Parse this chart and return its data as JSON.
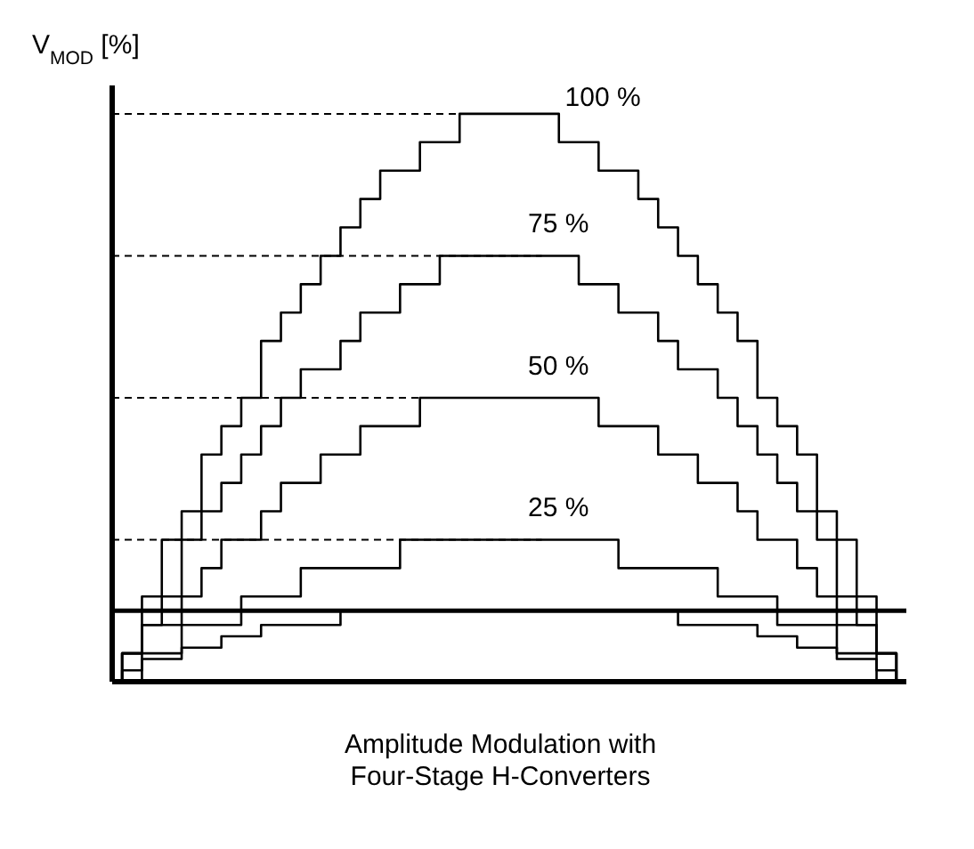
{
  "chart_data": {
    "type": "step",
    "ylabel": "V$_{MOD}$ [%]",
    "xlabel": "Amplitude Modulation with\nFour-Stage H-Converters",
    "categories": [
      null,
      null,
      null,
      null,
      null,
      null,
      null,
      null,
      null,
      null,
      null,
      null,
      null,
      null,
      null,
      null,
      null,
      null,
      null,
      null,
      null,
      null,
      null,
      null,
      null,
      null,
      null,
      null,
      null,
      null,
      null,
      null,
      null,
      null,
      null,
      null,
      null,
      null,
      null,
      null,
      null
    ],
    "ylim": [
      0,
      105
    ],
    "tick_labels": false,
    "marker": "none",
    "line_style": "solid",
    "series": [
      {
        "color": "#000000",
        "values": [
          0,
          5,
          15,
          25,
          30,
          40,
          45,
          50,
          60,
          65,
          70,
          75,
          80,
          85,
          90,
          90,
          95,
          95,
          100,
          100,
          100,
          100,
          100,
          95,
          95,
          90,
          90,
          85,
          80,
          75,
          70,
          65,
          60,
          50,
          45,
          40,
          30,
          25,
          15,
          5,
          0
        ]
      },
      {
        "color": "#000000",
        "values": [
          0,
          5,
          10,
          15,
          25,
          30,
          35,
          40,
          45,
          50,
          55,
          55,
          60,
          65,
          65,
          70,
          70,
          75,
          75,
          75,
          75,
          75,
          75,
          75,
          70,
          70,
          65,
          65,
          60,
          55,
          55,
          50,
          45,
          40,
          35,
          30,
          25,
          15,
          10,
          5,
          0
        ]
      },
      {
        "color": "#000000",
        "values": [
          0,
          5,
          10,
          10,
          15,
          20,
          25,
          25,
          30,
          35,
          35,
          40,
          40,
          45,
          45,
          45,
          50,
          50,
          50,
          50,
          50,
          50,
          50,
          50,
          50,
          45,
          45,
          45,
          40,
          40,
          35,
          35,
          30,
          25,
          25,
          20,
          15,
          10,
          10,
          5,
          0
        ]
      },
      {
        "color": "#000000",
        "values": [
          0,
          0,
          5,
          5,
          10,
          10,
          10,
          15,
          15,
          15,
          20,
          20,
          20,
          20,
          20,
          25,
          25,
          25,
          25,
          25,
          25,
          25,
          25,
          25,
          25,
          25,
          20,
          20,
          20,
          20,
          20,
          15,
          15,
          15,
          10,
          10,
          10,
          5,
          5,
          0,
          0
        ]
      },
      {
        "color": "#000000",
        "values": [
          0,
          2,
          4,
          4,
          6,
          6,
          8,
          8,
          10,
          10,
          10,
          10,
          12.5,
          12.5,
          12.5,
          12.5,
          12.5,
          12.5,
          12.5,
          12.5,
          12.5,
          12.5,
          12.5,
          12.5,
          12.5,
          12.5,
          12.5,
          12.5,
          12.5,
          10,
          10,
          10,
          10,
          8,
          8,
          6,
          6,
          4,
          4,
          2,
          0
        ]
      }
    ],
    "ref_lines": [
      {
        "axis": "y",
        "value": 100,
        "label": "100 %",
        "color": "#000000",
        "line_style": "dashed"
      },
      {
        "axis": "y",
        "value": 75,
        "label": "75 %",
        "color": "#000000",
        "line_style": "dashed"
      },
      {
        "axis": "y",
        "value": 50,
        "label": "50 %",
        "color": "#000000",
        "line_style": "dashed"
      },
      {
        "axis": "y",
        "value": 25,
        "label": "25 %",
        "color": "#000000",
        "line_style": "dashed"
      },
      {
        "axis": "y",
        "value": 12.5,
        "label": null,
        "color": "#000000",
        "line_style": "solid"
      }
    ]
  }
}
